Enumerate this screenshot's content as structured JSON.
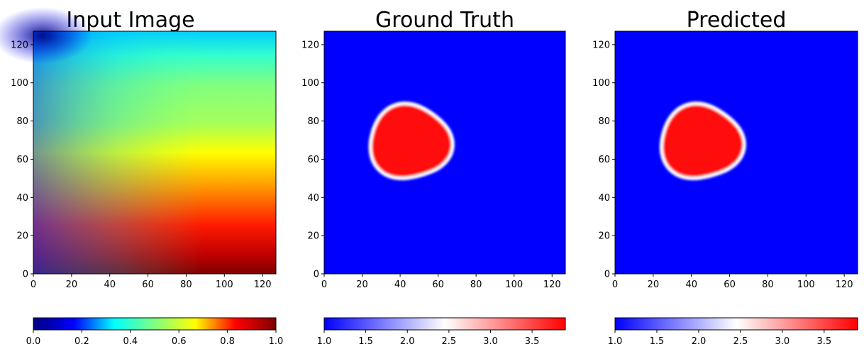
{
  "chart_data": [
    {
      "type": "heatmap",
      "title": "Input Image",
      "xlim": [
        0,
        127
      ],
      "ylim": [
        0,
        127
      ],
      "xticks": [
        "0",
        "20",
        "40",
        "60",
        "80",
        "100",
        "120"
      ],
      "yticks": [
        "0",
        "20",
        "40",
        "60",
        "80",
        "100",
        "120"
      ],
      "colormap": "jet",
      "colorbar": {
        "range": [
          0,
          1
        ],
        "ticks": [
          "0.0",
          "0.2",
          "0.4",
          "0.6",
          "0.8",
          "1.0"
        ],
        "tick_values": [
          0,
          0.2,
          0.4,
          0.6,
          0.8,
          1.0
        ],
        "orientation": "horizontal",
        "placement": "bottom"
      }
    },
    {
      "type": "heatmap",
      "title": "Ground Truth",
      "xlim": [
        0,
        127
      ],
      "ylim": [
        0,
        127
      ],
      "xticks": [
        "0",
        "20",
        "40",
        "60",
        "80",
        "100",
        "120"
      ],
      "yticks": [
        "0",
        "20",
        "40",
        "60",
        "80",
        "100",
        "120"
      ],
      "colormap": "bwr",
      "background_value": 1.0,
      "blob_value": 3.9,
      "blob": {
        "center": [
          45,
          69
        ],
        "radius_x": 21,
        "radius_y": 20
      },
      "colorbar": {
        "range": [
          1.0,
          3.9
        ],
        "ticks": [
          "1.0",
          "1.5",
          "2.0",
          "2.5",
          "3.0",
          "3.5"
        ],
        "tick_values": [
          1.0,
          1.5,
          2.0,
          2.5,
          3.0,
          3.5
        ],
        "orientation": "horizontal",
        "placement": "bottom"
      }
    },
    {
      "type": "heatmap",
      "title": "Predicted",
      "xlim": [
        0,
        127
      ],
      "ylim": [
        0,
        127
      ],
      "xticks": [
        "0",
        "20",
        "40",
        "60",
        "80",
        "100",
        "120"
      ],
      "yticks": [
        "0",
        "20",
        "40",
        "60",
        "80",
        "100",
        "120"
      ],
      "colormap": "bwr",
      "background_value": 1.0,
      "blob_value": 3.9,
      "blob": {
        "center": [
          45,
          69
        ],
        "radius_x": 21,
        "radius_y": 20
      },
      "colorbar": {
        "range": [
          1.0,
          3.9
        ],
        "ticks": [
          "1.0",
          "1.5",
          "2.0",
          "2.5",
          "3.0",
          "3.5"
        ],
        "tick_values": [
          1.0,
          1.5,
          2.0,
          2.5,
          3.0,
          3.5
        ],
        "orientation": "horizontal",
        "placement": "bottom"
      }
    }
  ],
  "colors": {
    "jet": [
      "#00007f",
      "#0000ff",
      "#00ffff",
      "#80ff80",
      "#ffff00",
      "#ff0000",
      "#7f0000"
    ],
    "bwr": [
      "#0000ff",
      "#ffffff",
      "#ff0000"
    ]
  }
}
